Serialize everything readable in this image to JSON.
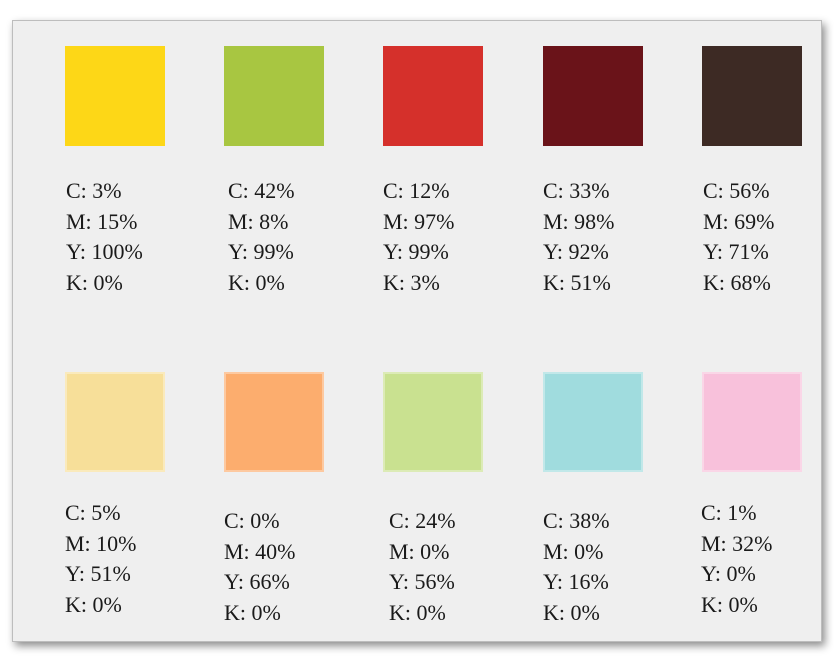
{
  "swatches": [
    {
      "color": "#FDD717",
      "c": "C: 3%",
      "m": "M: 15%",
      "y": "Y: 100%",
      "k": "K: 0%"
    },
    {
      "color": "#A8C641",
      "c": "C: 42%",
      "m": "M: 8%",
      "y": "Y: 99%",
      "k": "K: 0%"
    },
    {
      "color": "#D5302B",
      "c": "C: 12%",
      "m": "M: 97%",
      "y": "Y: 99%",
      "k": "K: 3%"
    },
    {
      "color": "#6A1319",
      "c": "C: 33%",
      "m": "M: 98%",
      "y": "Y: 92%",
      "k": "K: 51%"
    },
    {
      "color": "#3D2A24",
      "c": "C: 56%",
      "m": "M: 69%",
      "y": "Y: 71%",
      "k": "K: 68%"
    },
    {
      "color": "#F7DF99",
      "c": "C: 5%",
      "m": "M: 10%",
      "y": "Y: 51%",
      "k": "K: 0%"
    },
    {
      "color": "#FCAD6E",
      "c": "C: 0%",
      "m": "M: 40%",
      "y": "Y: 66%",
      "k": "K: 0%"
    },
    {
      "color": "#C9E190",
      "c": "C: 24%",
      "m": "M: 0%",
      "y": "Y: 56%",
      "k": "K: 0%"
    },
    {
      "color": "#A0DCDE",
      "c": "C: 38%",
      "m": "M: 0%",
      "y": "Y: 16%",
      "k": "K: 0%"
    },
    {
      "color": "#F8C1DB",
      "c": "C: 1%",
      "m": "M: 32%",
      "y": "Y: 0%",
      "k": "K: 0%"
    }
  ]
}
